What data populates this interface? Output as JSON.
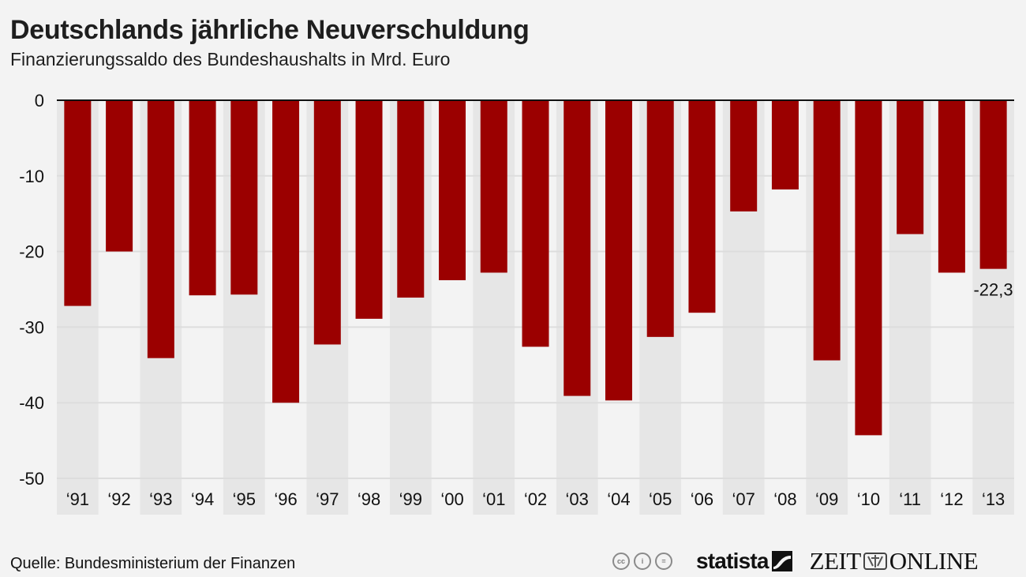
{
  "header": {
    "title": "Deutschlands jährliche Neuverschuldung",
    "subtitle": "Finanzierungssaldo des Bundeshaushalts in Mrd. Euro"
  },
  "footer": {
    "source": "Quelle: Bundesministerium der Finanzen",
    "cc_icons": [
      "cc-icon",
      "by-icon",
      "nd-icon"
    ],
    "cc_labels": [
      "cc",
      "i",
      "="
    ],
    "statista_label": "statista",
    "zeit_left": "ZEIT",
    "zeit_right": "ONLINE"
  },
  "colors": {
    "bar": "#9b0000",
    "band": "#e6e6e6",
    "background": "#f3f3f3",
    "zero_line": "#111111",
    "grid": "#dddddd"
  },
  "chart_data": {
    "type": "bar",
    "title": "Deutschlands jährliche Neuverschuldung",
    "subtitle": "Finanzierungssaldo des Bundeshaushalts in Mrd. Euro",
    "xlabel": "",
    "ylabel": "",
    "categories": [
      "‘91",
      "‘92",
      "‘93",
      "‘94",
      "‘95",
      "‘96",
      "‘97",
      "‘98",
      "‘99",
      "‘00",
      "‘01",
      "‘02",
      "‘03",
      "‘04",
      "‘05",
      "‘06",
      "‘07",
      "‘08",
      "‘09",
      "‘10",
      "‘11",
      "‘12",
      "‘13"
    ],
    "values": [
      -27.2,
      -20.0,
      -34.1,
      -25.8,
      -25.7,
      -40.0,
      -32.3,
      -28.9,
      -26.1,
      -23.8,
      -22.8,
      -32.6,
      -39.1,
      -39.7,
      -31.3,
      -28.1,
      -14.7,
      -11.8,
      -34.4,
      -44.3,
      -17.7,
      -22.8,
      -22.3
    ],
    "ylim": [
      -50,
      0
    ],
    "yticks": [
      0,
      -10,
      -20,
      -30,
      -40,
      -50
    ],
    "ytick_labels": [
      "0",
      "-10",
      "-20",
      "-30",
      "-40",
      "-50"
    ],
    "grid": true,
    "data_labels": [
      {
        "index": 22,
        "text": "-22,3"
      }
    ],
    "source": "Quelle: Bundesministerium der Finanzen"
  }
}
